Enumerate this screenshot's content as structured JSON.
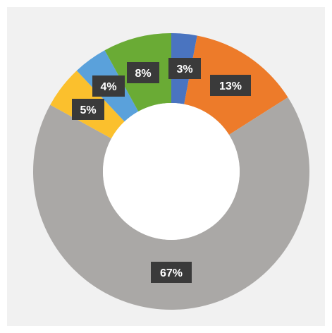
{
  "chart_data": {
    "type": "pie",
    "donut": true,
    "title": "",
    "colors": {
      "background": "#f1f1f1",
      "hole": "#ffffff",
      "label_box": "#3a3a3a",
      "label_text": "#ffffff"
    },
    "slices": [
      {
        "value": 3,
        "label": "3%",
        "color": "#4a74c0"
      },
      {
        "value": 13,
        "label": "13%",
        "color": "#ed7b2a"
      },
      {
        "value": 67,
        "label": "67%",
        "color": "#aaa8a6"
      },
      {
        "value": 5,
        "label": "5%",
        "color": "#fbc02d"
      },
      {
        "value": 4,
        "label": "4%",
        "color": "#5aa1db"
      },
      {
        "value": 8,
        "label": "8%",
        "color": "#6aab35"
      }
    ]
  }
}
